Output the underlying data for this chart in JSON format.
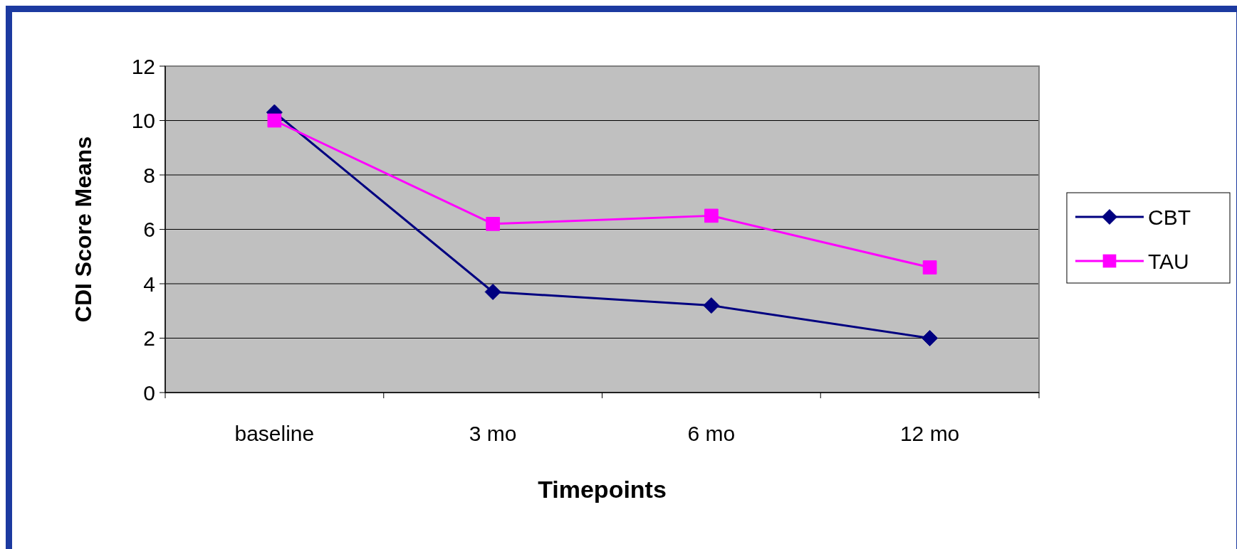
{
  "chart_data": {
    "type": "line",
    "xlabel": "Timepoints",
    "ylabel": "CDI Score Means",
    "categories": [
      "baseline",
      "3 mo",
      "6 mo",
      "12 mo"
    ],
    "series": [
      {
        "name": "CBT",
        "color": "#000080",
        "marker": "diamond",
        "values": [
          10.3,
          3.7,
          3.2,
          2.0
        ]
      },
      {
        "name": "TAU",
        "color": "#ff00ff",
        "marker": "square",
        "values": [
          10.0,
          6.2,
          6.5,
          4.6
        ]
      }
    ],
    "ylim": [
      0,
      12
    ],
    "yticks": [
      0,
      2,
      4,
      6,
      8,
      10,
      12
    ],
    "grid": "y",
    "legend": "right",
    "line_style": "solid"
  }
}
